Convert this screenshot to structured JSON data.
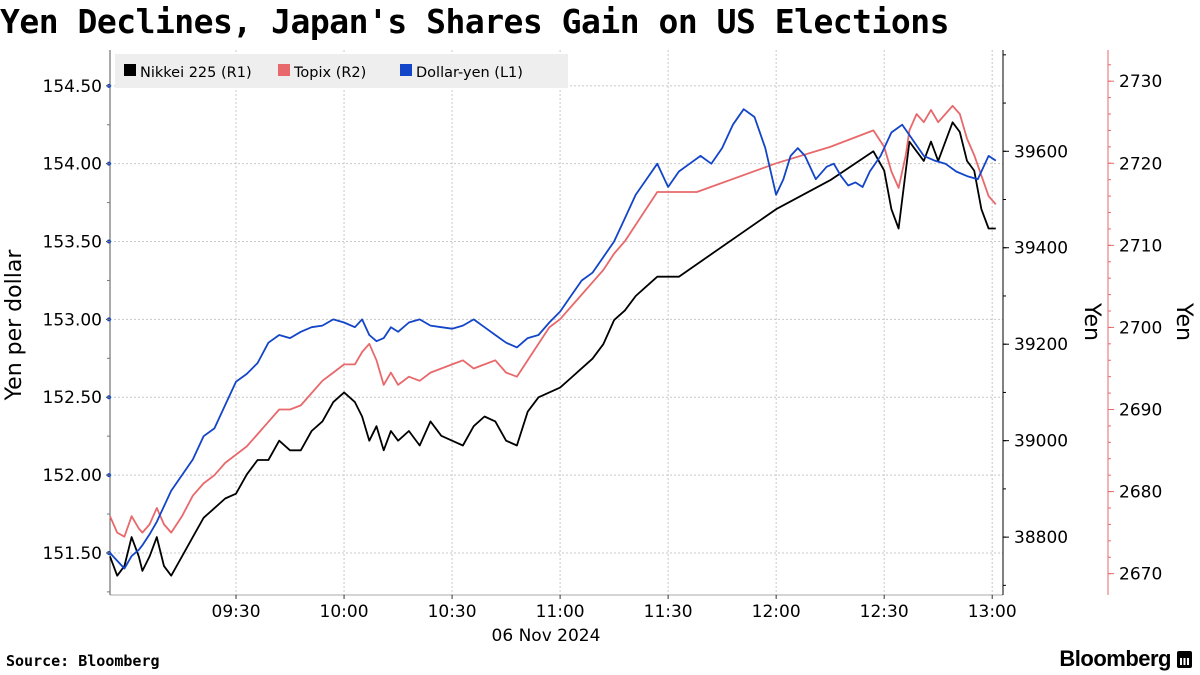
{
  "title": "Yen Declines, Japan's Shares Gain on US Elections",
  "source": "Source: Bloomberg",
  "brand": "Bloomberg",
  "chart_data": {
    "type": "line",
    "title": "Yen Declines, Japan's Shares Gain on US Elections",
    "xlabel": "06 Nov 2024",
    "x_ticks": [
      "09:30",
      "10:00",
      "10:30",
      "11:00",
      "11:30",
      "12:00",
      "12:30",
      "13:00"
    ],
    "x_range_minutes": [
      0,
      248
    ],
    "x_tick_minutes": [
      35,
      65,
      95,
      125,
      155,
      185,
      215,
      245
    ],
    "left_axis": {
      "label": "Yen per dollar",
      "range": [
        151.23,
        154.73
      ],
      "ticks": [
        151.5,
        152.0,
        152.5,
        153.0,
        153.5,
        154.0,
        154.5
      ],
      "tick_labels": [
        "151.50",
        "152.00",
        "152.50",
        "153.00",
        "153.50",
        "154.00",
        "154.50"
      ],
      "color": "#1f1f1f"
    },
    "right_axis_1": {
      "label": "Yen",
      "range": [
        38680,
        39810
      ],
      "ticks": [
        38800,
        39000,
        39200,
        39400,
        39600
      ],
      "tick_labels": [
        "38800",
        "39000",
        "39200",
        "39400",
        "39600"
      ],
      "color": "#000000"
    },
    "right_axis_2": {
      "label": "Yen",
      "range": [
        2667.4,
        2733.8
      ],
      "ticks": [
        2670,
        2680,
        2690,
        2700,
        2710,
        2720,
        2730
      ],
      "tick_labels": [
        "2670",
        "2680",
        "2690",
        "2700",
        "2710",
        "2720",
        "2730"
      ],
      "color": "#e8696b"
    },
    "legend": [
      {
        "name": "Nikkei 225 (R1)",
        "color": "#000000"
      },
      {
        "name": "Topix (R2)",
        "color": "#e8696b"
      },
      {
        "name": "Dollar-yen (L1)",
        "color": "#1245c8"
      }
    ],
    "legend_position": "top-left",
    "series": [
      {
        "name": "Nikkei 225 (R1)",
        "axis": "right_axis_1",
        "color": "#000000",
        "x": [
          0,
          2,
          4,
          6,
          8,
          9,
          11,
          13,
          15,
          17,
          20,
          23,
          26,
          29,
          32,
          35,
          38,
          41,
          44,
          47,
          50,
          53,
          56,
          59,
          62,
          65,
          68,
          70,
          72,
          74,
          76,
          78,
          80,
          83,
          86,
          89,
          92,
          95,
          98,
          101,
          104,
          107,
          110,
          113,
          116,
          119,
          122,
          125,
          128,
          131,
          134,
          137,
          140,
          143,
          146,
          149,
          152,
          155,
          158,
          185,
          200,
          212,
          215,
          217,
          219,
          221,
          222,
          224,
          226,
          228,
          230,
          232,
          234,
          236,
          238,
          240,
          242,
          244,
          246
        ],
        "values": [
          38760,
          38720,
          38740,
          38800,
          38760,
          38730,
          38760,
          38800,
          38740,
          38720,
          38760,
          38800,
          38840,
          38860,
          38880,
          38890,
          38930,
          38960,
          38960,
          39000,
          38980,
          38980,
          39020,
          39040,
          39080,
          39100,
          39080,
          39050,
          39000,
          39030,
          38980,
          39020,
          39000,
          39020,
          38990,
          39040,
          39010,
          39000,
          38990,
          39030,
          39050,
          39040,
          39000,
          38990,
          39060,
          39090,
          39100,
          39110,
          39130,
          39150,
          39170,
          39200,
          39250,
          39270,
          39300,
          39320,
          39340,
          39340,
          39340,
          39480,
          39540,
          39600,
          39560,
          39480,
          39440,
          39560,
          39620,
          39600,
          39580,
          39620,
          39580,
          39620,
          39660,
          39640,
          39580,
          39560,
          39480,
          39440,
          39440
        ]
      },
      {
        "name": "Topix (R2)",
        "axis": "right_axis_2",
        "color": "#e8696b",
        "x": [
          0,
          2,
          4,
          6,
          8,
          9,
          11,
          13,
          15,
          17,
          20,
          23,
          26,
          29,
          32,
          35,
          38,
          41,
          44,
          47,
          50,
          53,
          56,
          59,
          62,
          65,
          68,
          70,
          72,
          74,
          76,
          78,
          80,
          83,
          86,
          89,
          92,
          95,
          98,
          101,
          104,
          107,
          110,
          113,
          116,
          119,
          122,
          125,
          128,
          131,
          134,
          137,
          140,
          143,
          146,
          149,
          152,
          155,
          163,
          185,
          200,
          212,
          215,
          217,
          219,
          221,
          222,
          224,
          226,
          228,
          230,
          232,
          234,
          236,
          238,
          240,
          242,
          244,
          246
        ],
        "values": [
          2677.0,
          2675.0,
          2674.5,
          2677.0,
          2675.5,
          2675.0,
          2676.0,
          2678.0,
          2676.0,
          2675.0,
          2677.0,
          2679.5,
          2681.0,
          2682.0,
          2683.5,
          2684.5,
          2685.5,
          2687.0,
          2688.5,
          2690.0,
          2690.0,
          2690.5,
          2692.0,
          2693.5,
          2694.5,
          2695.5,
          2695.5,
          2697.0,
          2698.0,
          2696.0,
          2693.0,
          2694.5,
          2693.0,
          2694.0,
          2693.5,
          2694.5,
          2695.0,
          2695.5,
          2696.0,
          2695.0,
          2695.5,
          2696.0,
          2694.5,
          2694.0,
          2696.0,
          2698.0,
          2700.0,
          2701.0,
          2702.5,
          2704.0,
          2705.5,
          2707.0,
          2709.0,
          2710.5,
          2712.5,
          2714.5,
          2716.5,
          2716.5,
          2716.5,
          2720.0,
          2722.0,
          2724.0,
          2722.0,
          2719.0,
          2717.0,
          2721.0,
          2724.0,
          2726.0,
          2725.0,
          2726.5,
          2725.0,
          2726.0,
          2727.0,
          2726.0,
          2723.0,
          2721.0,
          2718.5,
          2716.0,
          2715.0
        ]
      },
      {
        "name": "Dollar-yen (L1)",
        "axis": "left_axis",
        "color": "#1245c8",
        "x": [
          0,
          2,
          4,
          6,
          8,
          9,
          11,
          13,
          15,
          17,
          20,
          23,
          26,
          29,
          32,
          35,
          38,
          41,
          44,
          47,
          50,
          53,
          56,
          59,
          62,
          65,
          68,
          70,
          72,
          74,
          76,
          78,
          80,
          83,
          86,
          89,
          92,
          95,
          98,
          101,
          104,
          107,
          110,
          113,
          116,
          119,
          122,
          125,
          128,
          131,
          134,
          137,
          140,
          143,
          146,
          149,
          152,
          155,
          158,
          161,
          164,
          167,
          170,
          173,
          176,
          179,
          182,
          185,
          187,
          189,
          191,
          193,
          196,
          199,
          201,
          203,
          205,
          207,
          209,
          211,
          214,
          217,
          220,
          223,
          226,
          229,
          232,
          235,
          238,
          241,
          244,
          246
        ],
        "values": [
          151.5,
          151.45,
          151.4,
          151.48,
          151.52,
          151.55,
          151.62,
          151.7,
          151.8,
          151.9,
          152.0,
          152.1,
          152.25,
          152.3,
          152.45,
          152.6,
          152.65,
          152.72,
          152.85,
          152.9,
          152.88,
          152.92,
          152.95,
          152.96,
          153.0,
          152.98,
          152.95,
          153.0,
          152.9,
          152.86,
          152.88,
          152.95,
          152.92,
          152.98,
          153.0,
          152.96,
          152.95,
          152.94,
          152.96,
          153.0,
          152.95,
          152.9,
          152.85,
          152.82,
          152.88,
          152.9,
          152.98,
          153.05,
          153.15,
          153.25,
          153.3,
          153.4,
          153.5,
          153.65,
          153.8,
          153.9,
          154.0,
          153.85,
          153.95,
          154.0,
          154.05,
          154.0,
          154.1,
          154.25,
          154.35,
          154.3,
          154.1,
          153.8,
          153.9,
          154.05,
          154.1,
          154.05,
          153.9,
          153.98,
          154.0,
          153.92,
          153.86,
          153.88,
          153.85,
          153.95,
          154.05,
          154.2,
          154.25,
          154.15,
          154.05,
          154.02,
          154.0,
          153.95,
          153.92,
          153.9,
          154.05,
          154.02
        ]
      }
    ]
  }
}
